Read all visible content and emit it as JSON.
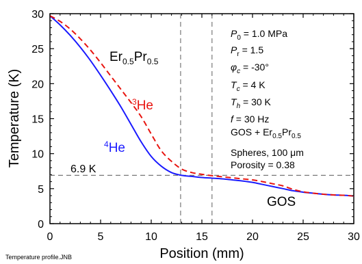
{
  "chart_data": {
    "type": "line",
    "xlabel": "Position (mm)",
    "ylabel": "Temperature (K)",
    "xlim": [
      0,
      30
    ],
    "ylim": [
      0,
      30
    ],
    "xticks": [
      0,
      5,
      10,
      15,
      20,
      25,
      30
    ],
    "yticks": [
      0,
      5,
      10,
      15,
      20,
      25,
      30
    ],
    "grid": false,
    "series": [
      {
        "name": "4He",
        "color": "#1a1aff",
        "line_style": "solid",
        "x": [
          0,
          1,
          2,
          3,
          4,
          5,
          6,
          7,
          8,
          9,
          10,
          11,
          12,
          13,
          14,
          15,
          16,
          17,
          18,
          19,
          20,
          21,
          22,
          23,
          24,
          25,
          26,
          27,
          28,
          29,
          30
        ],
        "y": [
          29.7,
          28.4,
          26.9,
          25.2,
          23.3,
          21.2,
          19.0,
          16.7,
          14.2,
          11.7,
          9.6,
          8.2,
          7.3,
          6.9,
          6.75,
          6.6,
          6.5,
          6.4,
          6.25,
          6.1,
          5.9,
          5.6,
          5.3,
          5.0,
          4.7,
          4.5,
          4.35,
          4.2,
          4.1,
          4.05,
          3.95
        ]
      },
      {
        "name": "3He",
        "color": "#e8140f",
        "line_style": "dashed",
        "x": [
          0,
          1,
          2,
          3,
          4,
          5,
          6,
          7,
          8,
          9,
          10,
          11,
          12,
          13,
          14,
          15,
          16,
          17,
          18,
          19,
          20,
          21,
          22,
          23,
          24,
          25,
          26,
          27,
          28,
          29,
          30
        ],
        "y": [
          29.7,
          28.9,
          27.8,
          26.4,
          24.8,
          23.0,
          21.1,
          19.2,
          17.3,
          15.3,
          12.8,
          10.4,
          8.9,
          7.8,
          7.3,
          7.05,
          6.85,
          6.7,
          6.55,
          6.4,
          6.25,
          6.0,
          5.7,
          5.4,
          4.9,
          4.55,
          4.35,
          4.2,
          4.1,
          4.05,
          3.95
        ]
      }
    ],
    "reference_lines": [
      {
        "orientation": "horizontal",
        "value": 6.9,
        "label": "6.9 K"
      },
      {
        "orientation": "vertical",
        "value": 12.9
      },
      {
        "orientation": "vertical",
        "value": 16.0
      }
    ],
    "annotations": {
      "material": {
        "main": "Er",
        "sub1": "0.5",
        "mid": "Pr",
        "sub2": "0.5"
      },
      "he3": {
        "sup": "3",
        "text": "He",
        "color": "#e8140f"
      },
      "he4": {
        "sup": "4",
        "text": "He",
        "color": "#1a1aff"
      },
      "gos": "GOS"
    },
    "parameters": {
      "p0": {
        "sym": "P",
        "sub": "0",
        "value": " = 1.0 MPa"
      },
      "pr": {
        "sym": "P",
        "sub": "r",
        "value": " = 1.5"
      },
      "phi": {
        "sym": "φ",
        "sub": "c",
        "value": " = -30°"
      },
      "tc": {
        "sym": "T",
        "sub": "c",
        "value": " = 4 K"
      },
      "th": {
        "sym": "T",
        "sub": "h",
        "value": " = 30 K"
      },
      "f": {
        "sym": "f",
        "value": " = 30 Hz"
      },
      "regen": {
        "text": "GOS + Er",
        "sub1": "0.5",
        "mid": "Pr",
        "sub2": "0.5"
      },
      "spheres": {
        "text": "Spheres, 100 ",
        "mu": "μ",
        "unit": "m"
      },
      "porosity": "Porosity = 0.38"
    }
  },
  "footer": "Temperature profile.JNB"
}
